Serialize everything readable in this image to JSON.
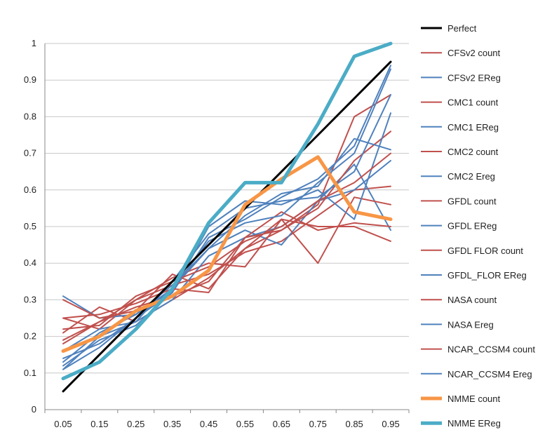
{
  "chart_data": {
    "type": "line",
    "title": "",
    "xlabel": "",
    "ylabel": "",
    "categories": [
      "0.05",
      "0.15",
      "0.25",
      "0.35",
      "0.45",
      "0.55",
      "0.65",
      "0.75",
      "0.85",
      "0.95"
    ],
    "ylim": [
      0,
      1
    ],
    "yticks": [
      "0",
      "0.1",
      "0.2",
      "0.3",
      "0.4",
      "0.5",
      "0.6",
      "0.7",
      "0.8",
      "0.9",
      "1"
    ],
    "grid": "horizontal",
    "legend": "right",
    "series": [
      {
        "name": "Perfect",
        "color": "#000000",
        "width": 3,
        "values": [
          0.05,
          0.15,
          0.25,
          0.35,
          0.45,
          0.55,
          0.65,
          0.75,
          0.85,
          0.95
        ]
      },
      {
        "name": "CFSv2 count",
        "color": "#c0504d",
        "width": 2,
        "values": [
          0.21,
          0.28,
          0.24,
          0.3,
          0.36,
          0.44,
          0.49,
          0.56,
          0.8,
          0.86
        ]
      },
      {
        "name": "CFSv2 EReg",
        "color": "#4f81bd",
        "width": 2,
        "values": [
          0.14,
          0.18,
          0.25,
          0.32,
          0.47,
          0.52,
          0.58,
          0.63,
          0.72,
          0.94
        ]
      },
      {
        "name": "CMC1 count",
        "color": "#c0504d",
        "width": 2,
        "values": [
          0.25,
          0.22,
          0.3,
          0.34,
          0.37,
          0.43,
          0.46,
          0.53,
          0.6,
          0.61
        ]
      },
      {
        "name": "CMC1 EReg",
        "color": "#4f81bd",
        "width": 2,
        "values": [
          0.31,
          0.25,
          0.26,
          0.34,
          0.44,
          0.49,
          0.45,
          0.57,
          0.67,
          0.49
        ]
      },
      {
        "name": "CMC2 count",
        "color": "#c0504d",
        "width": 2,
        "values": [
          0.19,
          0.24,
          0.3,
          0.36,
          0.4,
          0.39,
          0.52,
          0.4,
          0.58,
          0.56
        ]
      },
      {
        "name": "CMC2 Ereg",
        "color": "#4f81bd",
        "width": 2,
        "values": [
          0.11,
          0.2,
          0.24,
          0.3,
          0.42,
          0.47,
          0.5,
          0.57,
          0.6,
          0.68
        ]
      },
      {
        "name": "GFDL count",
        "color": "#c0504d",
        "width": 2,
        "values": [
          0.18,
          0.24,
          0.28,
          0.31,
          0.35,
          0.47,
          0.49,
          0.55,
          0.68,
          0.76
        ]
      },
      {
        "name": "GFDL EReg",
        "color": "#4f81bd",
        "width": 2,
        "values": [
          0.12,
          0.19,
          0.23,
          0.32,
          0.5,
          0.57,
          0.56,
          0.6,
          0.52,
          0.81
        ]
      },
      {
        "name": "GFDL FLOR count",
        "color": "#c0504d",
        "width": 2,
        "values": [
          0.3,
          0.25,
          0.27,
          0.37,
          0.33,
          0.44,
          0.52,
          0.5,
          0.5,
          0.46
        ]
      },
      {
        "name": "GFDL_FLOR EReg",
        "color": "#4f81bd",
        "width": 2,
        "values": [
          0.13,
          0.21,
          0.26,
          0.33,
          0.44,
          0.53,
          0.59,
          0.61,
          0.74,
          0.71
        ]
      },
      {
        "name": "NASA count",
        "color": "#c0504d",
        "width": 2,
        "values": [
          0.25,
          0.26,
          0.29,
          0.33,
          0.32,
          0.47,
          0.54,
          0.49,
          0.51,
          0.5
        ]
      },
      {
        "name": "NASA Ereg",
        "color": "#4f81bd",
        "width": 2,
        "values": [
          0.16,
          0.22,
          0.24,
          0.35,
          0.48,
          0.55,
          0.57,
          0.58,
          0.65,
          0.86
        ]
      },
      {
        "name": "NCAR_CCSM4 count",
        "color": "#c0504d",
        "width": 2,
        "values": [
          0.22,
          0.23,
          0.31,
          0.35,
          0.39,
          0.46,
          0.5,
          0.57,
          0.62,
          0.7
        ]
      },
      {
        "name": "NCAR_CCSM4 Ereg",
        "color": "#4f81bd",
        "width": 2,
        "values": [
          0.11,
          0.17,
          0.25,
          0.33,
          0.46,
          0.51,
          0.53,
          0.62,
          0.7,
          0.93
        ]
      },
      {
        "name": "NMME count",
        "color": "#f79646",
        "width": 5,
        "values": [
          0.16,
          0.2,
          0.27,
          0.31,
          0.38,
          0.56,
          0.63,
          0.69,
          0.54,
          0.52
        ]
      },
      {
        "name": "NMME EReg",
        "color": "#4bacc6",
        "width": 5,
        "values": [
          0.085,
          0.13,
          0.22,
          0.33,
          0.51,
          0.62,
          0.62,
          0.78,
          0.965,
          1.0
        ]
      }
    ]
  }
}
